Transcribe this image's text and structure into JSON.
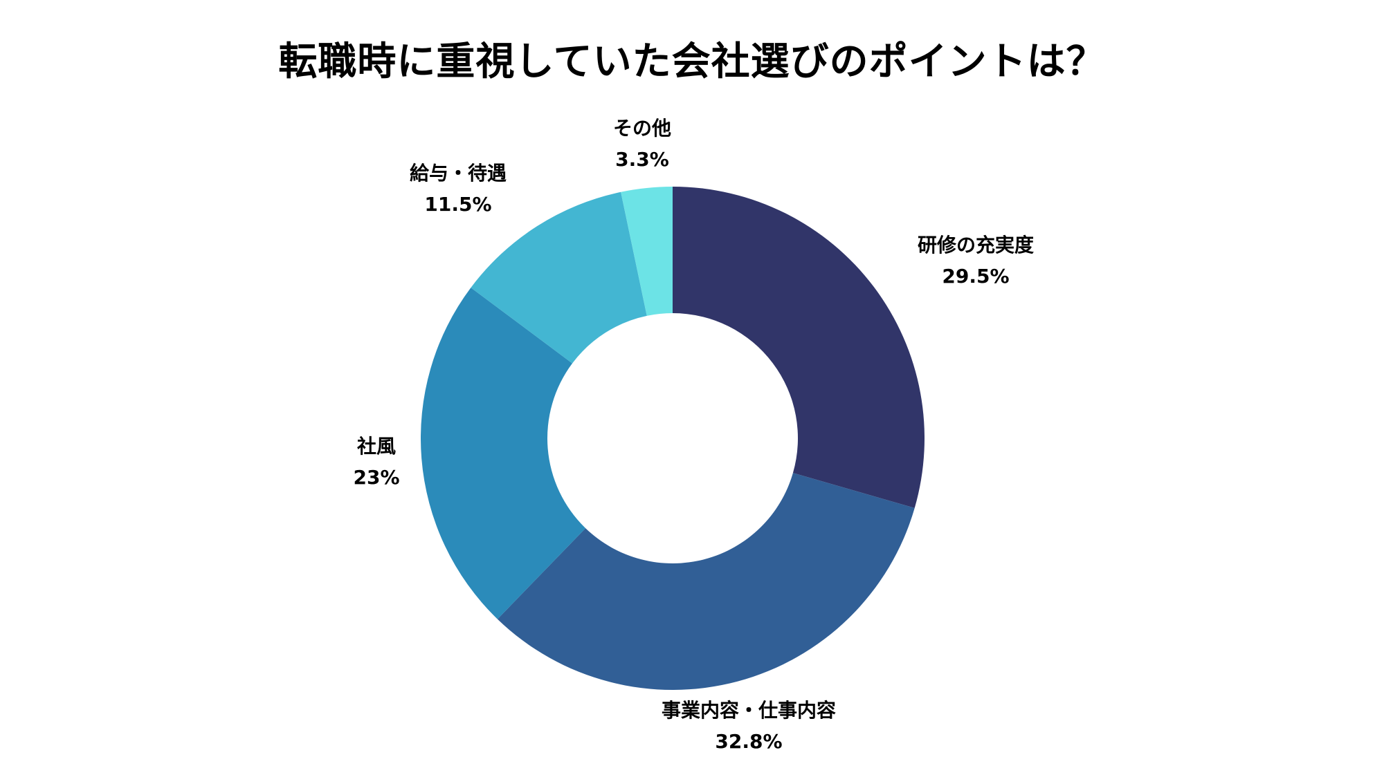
{
  "chart_data": {
    "type": "pie",
    "variant": "donut",
    "title": "転職時に重視していた会社選びのポイントは？",
    "slices": [
      {
        "label": "研修の充実度",
        "value": 29.5,
        "display": "29.5%",
        "color": "#313569"
      },
      {
        "label": "事業内容・仕事内容",
        "value": 32.8,
        "display": "32.8%",
        "color": "#315f96"
      },
      {
        "label": "社風",
        "value": 23,
        "display": "23%",
        "color": "#2b8bba"
      },
      {
        "label": "給与・待遇",
        "value": 11.5,
        "display": "11.5%",
        "color": "#43b6d2"
      },
      {
        "label": "その他",
        "value": 3.3,
        "display": "3.3%",
        "color": "#6ce3e6"
      }
    ],
    "start_angle": "top, clockwise",
    "legend": "none"
  }
}
